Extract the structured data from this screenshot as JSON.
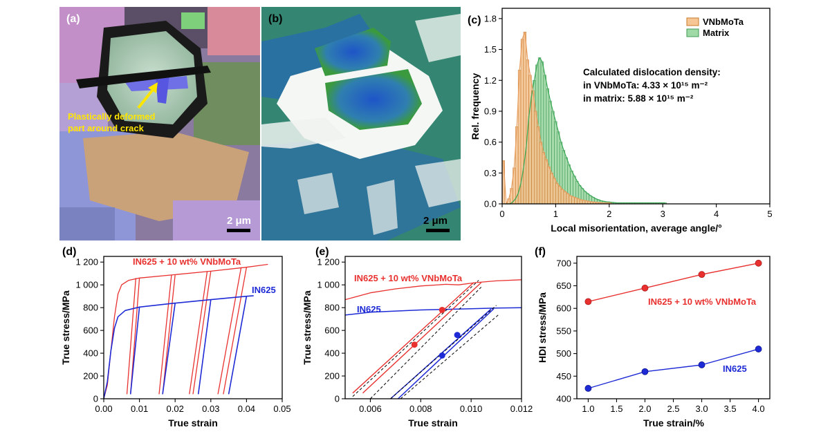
{
  "colors": {
    "red": "#e8312f",
    "blue": "#1d2ad6",
    "orange": "#e8a063",
    "green": "#7fcf8f",
    "annot_yellow": "#ffe600"
  },
  "panel_a": {
    "label": "(a)",
    "annotation": [
      "Plastically deformed",
      "part around crack"
    ],
    "scale_bar": "2 μm"
  },
  "panel_b": {
    "label": "(b)",
    "scale_bar": "2 μm"
  },
  "chart_data": [
    {
      "id": "c",
      "type": "bar",
      "label": "(c)",
      "xlabel": "Local misorientation, average angle/°",
      "ylabel": "Rel. frequency",
      "xlim": [
        0,
        5
      ],
      "ylim": [
        0,
        1.9
      ],
      "xticks": [
        "0",
        "1",
        "2",
        "3",
        "4",
        "5"
      ],
      "yticks": [
        "0.0",
        "0.3",
        "0.6",
        "0.9",
        "1.2",
        "1.5",
        "1.8"
      ],
      "legend": [
        "VNbMoTa",
        "Matrix"
      ],
      "annotation": [
        "Calculated dislocation density:",
        "in VNbMoTa: 4.33 × 10¹⁵ m⁻²",
        "in matrix: 5.88 × 10¹⁵ m⁻²"
      ],
      "series": [
        {
          "name": "VNbMoTa",
          "x0": 0.0,
          "dx": 0.05,
          "values": [
            0.42,
            0.0,
            0.05,
            0.15,
            0.35,
            0.75,
            1.3,
            1.6,
            1.67,
            1.4,
            1.25,
            1.1,
            0.9,
            0.75,
            0.6,
            0.5,
            0.43,
            0.36,
            0.3,
            0.25,
            0.2,
            0.17,
            0.14,
            0.12,
            0.1,
            0.08,
            0.07,
            0.06,
            0.05,
            0.04,
            0.035,
            0.03,
            0.025,
            0.02,
            0.018,
            0.015,
            0.013,
            0.011,
            0.01,
            0.01,
            0.01
          ]
        },
        {
          "name": "Matrix",
          "x0": 0.025,
          "dx": 0.05,
          "values": [
            0.0,
            0.0,
            0.0,
            0.02,
            0.05,
            0.1,
            0.2,
            0.35,
            0.55,
            0.85,
            1.05,
            1.2,
            1.35,
            1.42,
            1.38,
            1.25,
            1.12,
            1.0,
            0.9,
            0.8,
            0.7,
            0.6,
            0.52,
            0.45,
            0.38,
            0.32,
            0.27,
            0.22,
            0.18,
            0.15,
            0.12,
            0.1,
            0.08,
            0.065,
            0.05,
            0.04,
            0.03,
            0.025,
            0.02,
            0.018,
            0.015,
            0.012,
            0.01,
            0.01,
            0.01,
            0.01,
            0.01,
            0.01,
            0.01,
            0.01,
            0.01,
            0.01,
            0.01,
            0.01,
            0.01,
            0.01,
            0.01,
            0.01,
            0.01,
            0.01,
            0.01
          ]
        }
      ]
    },
    {
      "id": "d",
      "type": "line",
      "label": "(d)",
      "xlabel": "True strain",
      "ylabel": "True stress/MPa",
      "xlim": [
        0,
        0.05
      ],
      "ylim": [
        0,
        1250
      ],
      "xticks": [
        "0.00",
        "0.01",
        "0.02",
        "0.03",
        "0.04",
        "0.05"
      ],
      "yticks": [
        "0",
        "200",
        "400",
        "600",
        "800",
        "1 000",
        "1 200"
      ],
      "labels": {
        "red": "IN625 + 10 wt% VNbMoTa",
        "blue": "IN625"
      },
      "series": [
        {
          "name": "IN625 + 10 wt% VNbMoTa",
          "envelope": [
            [
              0,
              0
            ],
            [
              0.001,
              120
            ],
            [
              0.002,
              420
            ],
            [
              0.003,
              720
            ],
            [
              0.004,
              920
            ],
            [
              0.005,
              1000
            ],
            [
              0.007,
              1040
            ],
            [
              0.01,
              1060
            ],
            [
              0.02,
              1090
            ],
            [
              0.03,
              1120
            ],
            [
              0.04,
              1155
            ],
            [
              0.046,
              1180
            ]
          ],
          "cycles": [
            [
              0.0065,
              0.0075,
              0.009,
              0.01,
              1060
            ],
            [
              0.0155,
              0.0165,
              0.019,
              0.02,
              1090
            ],
            [
              0.024,
              0.025,
              0.029,
              0.03,
              1120
            ],
            [
              0.032,
              0.0335,
              0.0385,
              0.04,
              1155
            ]
          ]
        },
        {
          "name": "IN625",
          "envelope": [
            [
              0,
              0
            ],
            [
              0.001,
              150
            ],
            [
              0.002,
              420
            ],
            [
              0.003,
              620
            ],
            [
              0.004,
              720
            ],
            [
              0.006,
              775
            ],
            [
              0.01,
              805
            ],
            [
              0.02,
              840
            ],
            [
              0.03,
              870
            ],
            [
              0.04,
              900
            ],
            [
              0.042,
              905
            ]
          ],
          "cycles": [
            [
              0.0075,
              0.01,
              805
            ],
            [
              0.0165,
              0.02,
              840
            ],
            [
              0.0265,
              0.03,
              870
            ],
            [
              0.035,
              0.04,
              900
            ]
          ]
        }
      ]
    },
    {
      "id": "e",
      "type": "line",
      "label": "(e)",
      "xlabel": "True strain",
      "ylabel": "True stress/MPa",
      "xlim": [
        0.005,
        0.012
      ],
      "ylim": [
        0,
        1250
      ],
      "xticks": [
        "0.006",
        "0.008",
        "0.010",
        "0.012"
      ],
      "xtick_values": [
        0.006,
        0.008,
        0.01,
        0.012
      ],
      "yticks": [
        "0",
        "200",
        "400",
        "600",
        "800",
        "1 000",
        "1 200"
      ],
      "labels": {
        "red": "IN625 + 10 wt% VNbMoTa",
        "blue": "IN625"
      },
      "series": [
        {
          "name": "IN625 + 10 wt% VNbMoTa",
          "curve": [
            [
              0.005,
              870
            ],
            [
              0.006,
              930
            ],
            [
              0.007,
              965
            ],
            [
              0.008,
              990
            ],
            [
              0.009,
              1005
            ],
            [
              0.0095,
              1000
            ],
            [
              0.0102,
              1020
            ],
            [
              0.011,
              1035
            ],
            [
              0.012,
              1045
            ]
          ],
          "loop": [
            [
              0.0053,
              50
            ],
            [
              0.0101,
              1020
            ],
            [
              0.0104,
              1020
            ],
            [
              0.0057,
              50
            ]
          ],
          "points": [
            [
              0.00775,
              475
            ],
            [
              0.00885,
              780
            ]
          ]
        },
        {
          "name": "IN625",
          "curve": [
            [
              0.005,
              735
            ],
            [
              0.006,
              760
            ],
            [
              0.007,
              770
            ],
            [
              0.008,
              780
            ],
            [
              0.009,
              785
            ],
            [
              0.01,
              790
            ],
            [
              0.011,
              797
            ],
            [
              0.012,
              800
            ]
          ],
          "loop": [
            [
              0.0068,
              0
            ],
            [
              0.0108,
              790
            ],
            [
              0.0109,
              790
            ],
            [
              0.0071,
              0
            ]
          ],
          "points": [
            [
              0.00885,
              380
            ],
            [
              0.00945,
              560
            ]
          ]
        }
      ]
    },
    {
      "id": "f",
      "type": "line",
      "label": "(f)",
      "xlabel": "True strain/%",
      "ylabel": "HDI stress/MPa",
      "xlim": [
        0.8,
        4.2
      ],
      "ylim": [
        400,
        715
      ],
      "xticks": [
        "1.0",
        "1.5",
        "2.0",
        "2.5",
        "3.0",
        "3.5",
        "4.0"
      ],
      "xtick_values": [
        1.0,
        1.5,
        2.0,
        2.5,
        3.0,
        3.5,
        4.0
      ],
      "yticks": [
        "400",
        "450",
        "500",
        "550",
        "600",
        "650",
        "700"
      ],
      "ytick_values": [
        400,
        450,
        500,
        550,
        600,
        650,
        700
      ],
      "x": [
        1,
        2,
        3,
        4
      ],
      "series": [
        {
          "name": "IN625 + 10 wt% VNbMoTa",
          "values": [
            615,
            645,
            675,
            700
          ]
        },
        {
          "name": "IN625",
          "values": [
            423,
            460,
            475,
            510
          ]
        }
      ]
    }
  ]
}
